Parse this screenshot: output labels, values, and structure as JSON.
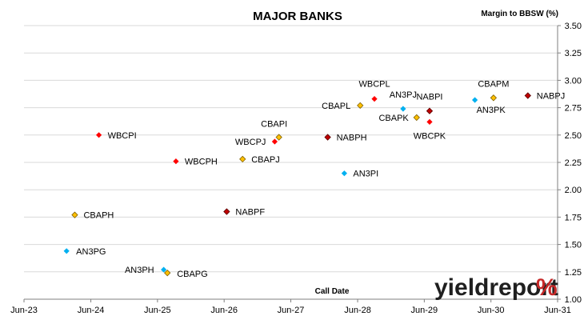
{
  "chart_data": {
    "type": "scatter",
    "title": "MAJOR BANKS",
    "xlabel": "Call Date",
    "ylabel": "Margin to BBSW (%)",
    "x_ticks": [
      "Jun-23",
      "Jun-24",
      "Jun-25",
      "Jun-26",
      "Jun-27",
      "Jun-28",
      "Jun-29",
      "Jun-30",
      "Jun-31"
    ],
    "xlim": [
      "Jun-23",
      "Jun-31"
    ],
    "ylim": [
      1.0,
      3.5
    ],
    "y_ticks": [
      "1.00",
      "1.25",
      "1.50",
      "1.75",
      "2.00",
      "2.25",
      "2.50",
      "2.75",
      "3.00",
      "3.25",
      "3.50"
    ],
    "grid": "horizontal",
    "series": [
      {
        "name": "CBA",
        "color": "#ffc000",
        "points": [
          {
            "label": "CBAPH",
            "x": "2024-03-05",
            "y": 1.77
          },
          {
            "label": "CBAPG",
            "x": "2025-07-25",
            "y": 1.24
          },
          {
            "label": "CBAPJ",
            "x": "2026-09-10",
            "y": 2.28
          },
          {
            "label": "CBAPI",
            "x": "2027-03-28",
            "y": 2.48
          },
          {
            "label": "CBAPL",
            "x": "2028-06-15",
            "y": 2.77
          },
          {
            "label": "CBAPK",
            "x": "2029-04-20",
            "y": 2.66
          },
          {
            "label": "CBAPM",
            "x": "2030-06-15",
            "y": 2.84
          }
        ]
      },
      {
        "name": "WBC",
        "color": "#ff0000",
        "points": [
          {
            "label": "WBCPI",
            "x": "2024-07-15",
            "y": 2.5
          },
          {
            "label": "WBCPH",
            "x": "2025-09-10",
            "y": 2.26
          },
          {
            "label": "WBCPJ",
            "x": "2027-03-05",
            "y": 2.44
          },
          {
            "label": "WBCPL",
            "x": "2028-09-01",
            "y": 2.83
          },
          {
            "label": "WBCPK",
            "x": "2029-06-30",
            "y": 2.62
          }
        ]
      },
      {
        "name": "NAB",
        "color": "#c00000",
        "points": [
          {
            "label": "NABPF",
            "x": "2026-06-15",
            "y": 1.8
          },
          {
            "label": "NABPH",
            "x": "2027-12-20",
            "y": 2.48
          },
          {
            "label": "NABPI",
            "x": "2029-06-30",
            "y": 2.72
          },
          {
            "label": "NABPJ",
            "x": "2030-12-20",
            "y": 2.86
          }
        ]
      },
      {
        "name": "AN3",
        "color": "#00b0f0",
        "points": [
          {
            "label": "AN3PG",
            "x": "2024-01-20",
            "y": 1.44
          },
          {
            "label": "AN3PH",
            "x": "2025-07-05",
            "y": 1.27
          },
          {
            "label": "AN3PI",
            "x": "2028-03-20",
            "y": 2.15
          },
          {
            "label": "AN3PJ",
            "x": "2029-02-05",
            "y": 2.74
          },
          {
            "label": "AN3PK",
            "x": "2030-03-05",
            "y": 2.82
          }
        ]
      }
    ]
  },
  "logo": {
    "text": "yieldreport",
    "symbol": "%",
    "text_color": "#1f1f1f",
    "symbol_colors": [
      "#2e7d32",
      "#c62828"
    ]
  }
}
